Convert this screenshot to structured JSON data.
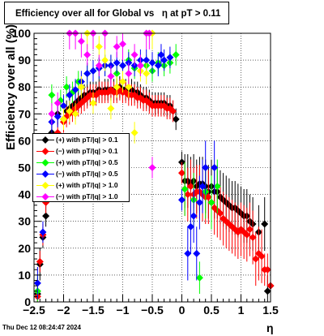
{
  "title": {
    "part1": "Efficiency over all for Global vs",
    "part2": "η at pT > 0.11"
  },
  "timestamp": "Thu Dec 12 08:24:47 2024",
  "colors": {
    "black": "#000000",
    "red": "#ff0000",
    "green": "#00ff00",
    "blue": "#0000ff",
    "yellow": "#ffff00",
    "magenta": "#ff00ff"
  },
  "chart_data": {
    "type": "scatter",
    "title": "Efficiency over all for Global vs η at pT > 0.11",
    "xlabel": "η",
    "ylabel": "Efficiency over all (%)",
    "xlim": [
      -2.5,
      1.5
    ],
    "ylim": [
      0,
      100
    ],
    "x_ticks": [
      "−2.5",
      "−2",
      "−1.5",
      "−1",
      "−0.5",
      "0",
      "0.5",
      "1",
      "1.5"
    ],
    "y_ticks": [
      "0",
      "10",
      "20",
      "30",
      "40",
      "50",
      "60",
      "70",
      "80",
      "90",
      "100"
    ],
    "grid": true,
    "legend_position": "left-middle",
    "series": [
      {
        "name": "(+) with pT/|q| > 0.1",
        "color": "black",
        "points": [
          [
            -2.44,
            3
          ],
          [
            -2.4,
            14
          ],
          [
            -2.35,
            24
          ],
          [
            -2.3,
            32
          ],
          [
            -2.2,
            63
          ],
          [
            -2.1,
            70
          ],
          [
            -2.0,
            68
          ],
          [
            -1.95,
            71
          ],
          [
            -1.9,
            72
          ],
          [
            -1.85,
            73
          ],
          [
            -1.8,
            74
          ],
          [
            -1.75,
            75
          ],
          [
            -1.7,
            76
          ],
          [
            -1.65,
            77
          ],
          [
            -1.6,
            77
          ],
          [
            -1.55,
            78
          ],
          [
            -1.5,
            78
          ],
          [
            -1.45,
            78
          ],
          [
            -1.4,
            79
          ],
          [
            -1.35,
            78
          ],
          [
            -1.3,
            79
          ],
          [
            -1.25,
            79
          ],
          [
            -1.2,
            79
          ],
          [
            -1.15,
            79
          ],
          [
            -1.1,
            79
          ],
          [
            -1.05,
            80
          ],
          [
            -1.0,
            79
          ],
          [
            -0.95,
            79
          ],
          [
            -0.9,
            79
          ],
          [
            -0.85,
            79
          ],
          [
            -0.8,
            78
          ],
          [
            -0.75,
            78
          ],
          [
            -0.7,
            77
          ],
          [
            -0.65,
            76
          ],
          [
            -0.6,
            76
          ],
          [
            -0.55,
            75
          ],
          [
            -0.5,
            74
          ],
          [
            -0.45,
            74
          ],
          [
            -0.4,
            74
          ],
          [
            -0.35,
            74
          ],
          [
            -0.3,
            74
          ],
          [
            -0.25,
            73
          ],
          [
            -0.2,
            73
          ],
          [
            -0.15,
            71
          ],
          [
            -0.1,
            68
          ],
          [
            0.0,
            52
          ],
          [
            0.05,
            45
          ],
          [
            0.1,
            45
          ],
          [
            0.15,
            44
          ],
          [
            0.2,
            45
          ],
          [
            0.25,
            43
          ],
          [
            0.3,
            44
          ],
          [
            0.35,
            44
          ],
          [
            0.4,
            43
          ],
          [
            0.45,
            41
          ],
          [
            0.5,
            43
          ],
          [
            0.55,
            41
          ],
          [
            0.6,
            41
          ],
          [
            0.65,
            39
          ],
          [
            0.7,
            38
          ],
          [
            0.75,
            37
          ],
          [
            0.8,
            36
          ],
          [
            0.85,
            35
          ],
          [
            0.9,
            35
          ],
          [
            0.95,
            34
          ],
          [
            1.0,
            33
          ],
          [
            1.05,
            32
          ],
          [
            1.1,
            32
          ],
          [
            1.15,
            30
          ],
          [
            1.2,
            29
          ],
          [
            1.3,
            26
          ],
          [
            1.4,
            29
          ],
          [
            1.45,
            4
          ],
          [
            1.5,
            6
          ]
        ]
      },
      {
        "name": "(−) with pT/|q| > 0.1",
        "color": "red",
        "points": [
          [
            -2.44,
            2
          ],
          [
            -2.4,
            15
          ],
          [
            -2.35,
            25
          ],
          [
            -2.3,
            37
          ],
          [
            -2.2,
            59
          ],
          [
            -2.1,
            63
          ],
          [
            -2.0,
            67
          ],
          [
            -1.95,
            69
          ],
          [
            -1.9,
            70
          ],
          [
            -1.85,
            71
          ],
          [
            -1.8,
            72
          ],
          [
            -1.75,
            73
          ],
          [
            -1.7,
            74
          ],
          [
            -1.65,
            75
          ],
          [
            -1.6,
            76
          ],
          [
            -1.55,
            77
          ],
          [
            -1.5,
            77
          ],
          [
            -1.45,
            77
          ],
          [
            -1.4,
            78
          ],
          [
            -1.35,
            78
          ],
          [
            -1.3,
            78
          ],
          [
            -1.25,
            78
          ],
          [
            -1.2,
            79
          ],
          [
            -1.15,
            78
          ],
          [
            -1.1,
            78
          ],
          [
            -1.05,
            79
          ],
          [
            -1.0,
            78
          ],
          [
            -0.95,
            78
          ],
          [
            -0.9,
            77
          ],
          [
            -0.85,
            77
          ],
          [
            -0.8,
            77
          ],
          [
            -0.75,
            76
          ],
          [
            -0.7,
            76
          ],
          [
            -0.65,
            75
          ],
          [
            -0.6,
            75
          ],
          [
            -0.55,
            74
          ],
          [
            -0.5,
            73
          ],
          [
            -0.45,
            73
          ],
          [
            -0.4,
            73
          ],
          [
            -0.35,
            73
          ],
          [
            -0.3,
            73
          ],
          [
            -0.25,
            72
          ],
          [
            -0.2,
            72
          ],
          [
            -0.15,
            71
          ],
          [
            0.0,
            48
          ],
          [
            0.05,
            42
          ],
          [
            0.1,
            40
          ],
          [
            0.15,
            43
          ],
          [
            0.2,
            40
          ],
          [
            0.25,
            41
          ],
          [
            0.3,
            41
          ],
          [
            0.35,
            40
          ],
          [
            0.4,
            39
          ],
          [
            0.45,
            39
          ],
          [
            0.5,
            37
          ],
          [
            0.55,
            35
          ],
          [
            0.6,
            34
          ],
          [
            0.65,
            33
          ],
          [
            0.7,
            31
          ],
          [
            0.75,
            30
          ],
          [
            0.8,
            29
          ],
          [
            0.85,
            28
          ],
          [
            0.9,
            27
          ],
          [
            0.95,
            26
          ],
          [
            1.0,
            27
          ],
          [
            1.05,
            26
          ],
          [
            1.1,
            25
          ],
          [
            1.15,
            27
          ],
          [
            1.2,
            24
          ],
          [
            1.25,
            16
          ],
          [
            1.3,
            18
          ],
          [
            1.35,
            17
          ],
          [
            1.4,
            12
          ],
          [
            1.45,
            12
          ],
          [
            1.5,
            6
          ],
          [
            1.55,
            9
          ]
        ]
      },
      {
        "name": "(+) with pT/|q| > 0.5",
        "color": "green",
        "points": [
          [
            -2.44,
            4
          ],
          [
            -2.2,
            77
          ],
          [
            -2.05,
            75
          ],
          [
            -1.95,
            80
          ],
          [
            -1.85,
            78
          ],
          [
            -1.75,
            82
          ],
          [
            -1.6,
            85
          ],
          [
            -1.5,
            86
          ],
          [
            -1.4,
            87
          ],
          [
            -1.3,
            88
          ],
          [
            -1.2,
            88
          ],
          [
            -1.1,
            85
          ],
          [
            -1.0,
            88
          ],
          [
            -0.9,
            90
          ],
          [
            -0.8,
            87
          ],
          [
            -0.7,
            88
          ],
          [
            -0.6,
            88
          ],
          [
            -0.5,
            86
          ],
          [
            -0.4,
            89
          ],
          [
            -0.3,
            88
          ],
          [
            -0.2,
            89
          ],
          [
            -0.1,
            92
          ],
          [
            0.05,
            42
          ],
          [
            0.2,
            38
          ],
          [
            0.3,
            9
          ],
          [
            0.4,
            41
          ],
          [
            0.5,
            37
          ],
          [
            0.6,
            43
          ]
        ]
      },
      {
        "name": "(−) with pT/|q| > 0.5",
        "color": "blue",
        "points": [
          [
            -2.44,
            7
          ],
          [
            -2.35,
            26
          ],
          [
            -2.2,
            67
          ],
          [
            -2.1,
            69
          ],
          [
            -2.0,
            73
          ],
          [
            -1.9,
            77
          ],
          [
            -1.8,
            79
          ],
          [
            -1.7,
            82
          ],
          [
            -1.6,
            85
          ],
          [
            -1.5,
            86
          ],
          [
            -1.4,
            87
          ],
          [
            -1.3,
            88
          ],
          [
            -1.2,
            88
          ],
          [
            -1.1,
            89
          ],
          [
            -1.0,
            88
          ],
          [
            -0.9,
            89
          ],
          [
            -0.8,
            88
          ],
          [
            -0.7,
            90
          ],
          [
            -0.6,
            90
          ],
          [
            -0.5,
            89
          ],
          [
            -0.4,
            88
          ],
          [
            -0.3,
            90
          ],
          [
            -0.35,
            92
          ],
          [
            -0.2,
            91
          ],
          [
            0.0,
            38
          ],
          [
            0.1,
            18
          ],
          [
            0.15,
            28
          ],
          [
            0.2,
            32
          ],
          [
            0.25,
            18
          ],
          [
            0.3,
            37
          ],
          [
            0.35,
            43
          ],
          [
            0.4,
            50
          ],
          [
            0.55,
            50
          ]
        ]
      },
      {
        "name": "(+) with pT/|q| > 1.0",
        "color": "yellow",
        "points": [
          [
            -2.0,
            68
          ],
          [
            -1.9,
            71
          ],
          [
            -1.8,
            70
          ],
          [
            -1.7,
            80
          ],
          [
            -1.6,
            100
          ],
          [
            -1.5,
            74
          ],
          [
            -1.4,
            95
          ],
          [
            -1.3,
            90
          ],
          [
            -1.2,
            72
          ],
          [
            -1.1,
            80
          ],
          [
            -1.0,
            82
          ],
          [
            -0.9,
            80
          ],
          [
            -0.8,
            63
          ],
          [
            -0.7,
            86
          ],
          [
            -0.6,
            85
          ],
          [
            -0.5,
            100
          ]
        ]
      },
      {
        "name": "(−) with pT/|q| > 1.0",
        "color": "magenta",
        "points": [
          [
            -2.2,
            70
          ],
          [
            -2.1,
            74
          ],
          [
            -1.9,
            100
          ],
          [
            -1.8,
            100
          ],
          [
            -1.7,
            97
          ],
          [
            -1.6,
            92
          ],
          [
            -1.5,
            100
          ],
          [
            -1.4,
            88
          ],
          [
            -1.3,
            100
          ],
          [
            -1.2,
            84
          ],
          [
            -1.1,
            95
          ],
          [
            -1.0,
            96
          ],
          [
            -0.9,
            85
          ],
          [
            -0.8,
            92
          ],
          [
            -0.7,
            88
          ],
          [
            -0.6,
            100
          ],
          [
            -0.5,
            50
          ],
          [
            -0.55,
            100
          ]
        ]
      }
    ]
  }
}
